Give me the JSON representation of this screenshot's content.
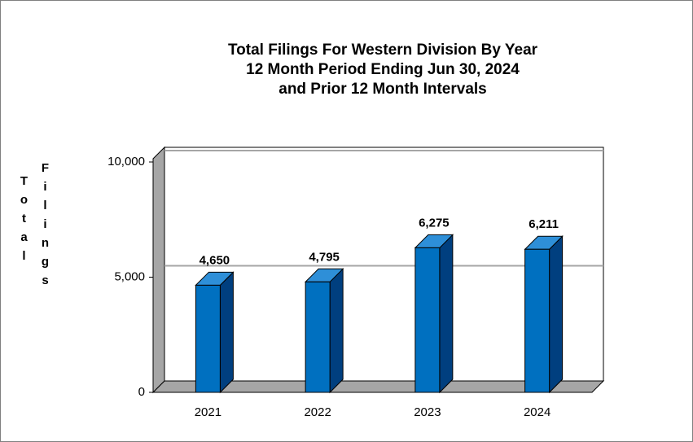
{
  "chart_data": {
    "type": "bar3d",
    "title": [
      "Total Filings For Western Division By Year",
      "12 Month Period Ending Jun 30, 2024",
      "and Prior 12 Month Intervals"
    ],
    "ylabel": [
      "Total",
      "Filings"
    ],
    "categories": [
      "2021",
      "2022",
      "2023",
      "2024"
    ],
    "values": [
      4650,
      4795,
      6275,
      6211
    ],
    "value_labels": [
      "4,650",
      "4,795",
      "6,275",
      "6,211"
    ],
    "color": "#0070c0",
    "ylim": [
      0,
      10000
    ],
    "yticks": [
      0,
      {
        "value": 5000,
        "label": "5,000"
      },
      {
        "value": 10000,
        "label": "10,000"
      }
    ],
    "grid": true
  }
}
